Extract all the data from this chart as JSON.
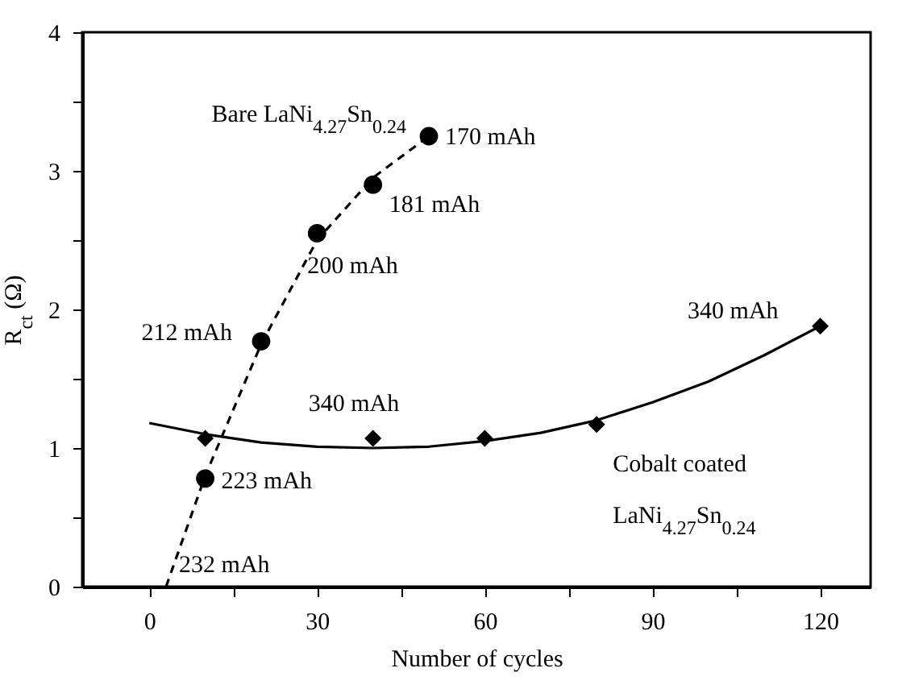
{
  "chart_data": {
    "type": "scatter",
    "xlabel": "Number of cycles",
    "ylabel": "R$_{ct}$ (Ω)",
    "xlim": [
      -12,
      129
    ],
    "ylim": [
      0,
      4
    ],
    "xticks": [
      0,
      {
        "value": 15,
        "label": null
      },
      30,
      {
        "value": 45,
        "label": null
      },
      60,
      {
        "value": 75,
        "label": null
      },
      90,
      {
        "value": 105,
        "label": null
      },
      120
    ],
    "yticks": [
      0,
      {
        "value": 0.5,
        "label": null
      },
      1,
      {
        "value": 1.5,
        "label": null
      },
      2,
      {
        "value": 2.5,
        "label": null
      },
      3,
      {
        "value": 3.5,
        "label": null
      },
      4
    ],
    "grid": false,
    "legend": false,
    "series": [
      {
        "type": "line",
        "color": "#000000",
        "line_style": "dashed",
        "marker": "none",
        "x": [
          3,
          10,
          20,
          30,
          40,
          50
        ],
        "values": [
          0,
          0.8,
          1.75,
          2.5,
          2.95,
          3.25
        ]
      },
      {
        "type": "line",
        "color": "#000000",
        "line_style": "solid",
        "marker": "none",
        "x": [
          0,
          10,
          20,
          30,
          40,
          50,
          60,
          70,
          80,
          90,
          100,
          110,
          120
        ],
        "values": [
          1.18,
          1.1,
          1.04,
          1.01,
          1.0,
          1.01,
          1.05,
          1.11,
          1.2,
          1.33,
          1.48,
          1.67,
          1.88
        ]
      },
      {
        "name": "Bare LaNi$_{4.27}$Sn$_{0.24}$",
        "color": "#000000",
        "marker": "circle",
        "x": [
          10,
          20,
          30,
          40,
          50
        ],
        "values": [
          0.78,
          1.77,
          2.55,
          2.9,
          3.25
        ]
      },
      {
        "name": "Cobalt coated LaNi$_{4.27}$Sn$_{0.24}$",
        "color": "#000000",
        "marker": "diamond",
        "x": [
          10,
          40,
          60,
          80,
          120
        ],
        "values": [
          1.07,
          1.07,
          1.07,
          1.17,
          1.88
        ]
      }
    ],
    "annotations": [
      {
        "text": "170 mAh",
        "x": 50,
        "y": 3.25
      },
      {
        "text": "181 mAh",
        "x": 40,
        "y": 2.9
      },
      {
        "text": "200 mAh",
        "x": 30,
        "y": 2.55
      },
      {
        "text": "212 mAh",
        "x": 20,
        "y": 1.77
      },
      {
        "text": "223 mAh",
        "x": 10,
        "y": 0.78
      },
      {
        "text": "232 mAh",
        "x": 3,
        "y": 0
      },
      {
        "text": "340 mAh",
        "x": 40,
        "y": 1.07
      },
      {
        "text": "340 mAh",
        "x": 120,
        "y": 1.88
      }
    ]
  }
}
